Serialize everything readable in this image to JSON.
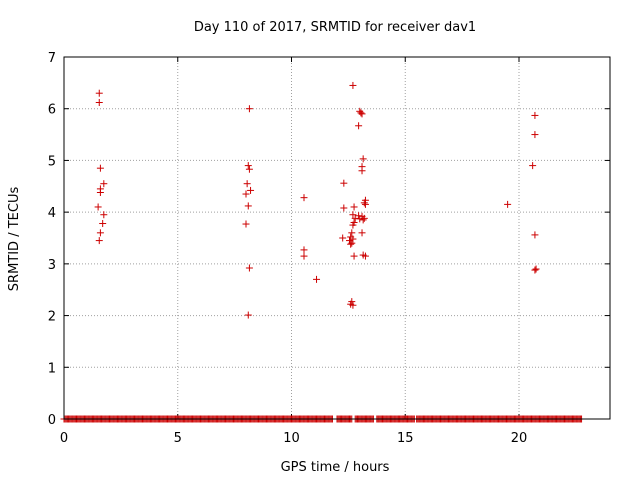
{
  "title": "Day 110 of 2017, SRMTID for receiver dav1",
  "xlabel": "GPS time / hours",
  "ylabel": "SRMTID / TECUs",
  "colors": {
    "points": "#cc0000",
    "axis": "#000000",
    "grid": "#a0a0a0",
    "background": "#ffffff"
  },
  "chart_data": {
    "type": "scatter",
    "title": "Day 110 of 2017, SRMTID for receiver dav1",
    "xlabel": "GPS time / hours",
    "ylabel": "SRMTID / TECUs",
    "xlim": [
      0,
      24
    ],
    "ylim": [
      0,
      7
    ],
    "xticks": [
      0,
      5,
      10,
      15,
      20
    ],
    "yticks": [
      0,
      1,
      2,
      3,
      4,
      5,
      6,
      7
    ],
    "grid": true,
    "marker": "+",
    "points": [
      [
        1.55,
        6.3
      ],
      [
        1.55,
        6.12
      ],
      [
        1.6,
        4.85
      ],
      [
        1.75,
        4.55
      ],
      [
        1.6,
        4.45
      ],
      [
        1.6,
        4.38
      ],
      [
        1.5,
        4.1
      ],
      [
        1.75,
        3.95
      ],
      [
        1.7,
        3.78
      ],
      [
        1.6,
        3.6
      ],
      [
        1.55,
        3.45
      ],
      [
        8.15,
        6.0
      ],
      [
        8.1,
        4.9
      ],
      [
        8.15,
        4.83
      ],
      [
        8.05,
        4.55
      ],
      [
        8.2,
        4.42
      ],
      [
        8.0,
        4.35
      ],
      [
        8.1,
        4.12
      ],
      [
        8.0,
        3.77
      ],
      [
        8.15,
        2.92
      ],
      [
        8.1,
        2.01
      ],
      [
        10.55,
        4.28
      ],
      [
        10.55,
        3.27
      ],
      [
        10.55,
        3.15
      ],
      [
        11.1,
        2.7
      ],
      [
        12.3,
        4.56
      ],
      [
        12.3,
        4.08
      ],
      [
        12.25,
        3.5
      ],
      [
        12.7,
        6.45
      ],
      [
        12.75,
        4.1
      ],
      [
        12.7,
        3.95
      ],
      [
        12.8,
        3.88
      ],
      [
        12.75,
        3.8
      ],
      [
        12.7,
        3.75
      ],
      [
        12.65,
        3.6
      ],
      [
        12.6,
        3.52
      ],
      [
        12.7,
        3.48
      ],
      [
        12.55,
        3.45
      ],
      [
        12.65,
        3.4
      ],
      [
        12.6,
        3.38
      ],
      [
        12.75,
        3.15
      ],
      [
        12.65,
        2.27
      ],
      [
        12.6,
        2.22
      ],
      [
        12.7,
        2.2
      ],
      [
        13.0,
        5.95
      ],
      [
        13.05,
        5.92
      ],
      [
        13.1,
        5.9
      ],
      [
        12.95,
        5.67
      ],
      [
        13.15,
        5.03
      ],
      [
        13.1,
        4.88
      ],
      [
        13.1,
        4.8
      ],
      [
        13.25,
        4.23
      ],
      [
        13.2,
        4.18
      ],
      [
        13.25,
        4.15
      ],
      [
        12.95,
        3.93
      ],
      [
        13.1,
        3.92
      ],
      [
        13.2,
        3.88
      ],
      [
        13.0,
        3.87
      ],
      [
        13.15,
        3.85
      ],
      [
        13.1,
        3.6
      ],
      [
        13.15,
        3.17
      ],
      [
        13.25,
        3.15
      ],
      [
        19.5,
        4.15
      ],
      [
        20.7,
        5.87
      ],
      [
        20.7,
        5.5
      ],
      [
        20.6,
        4.9
      ],
      [
        20.7,
        3.56
      ],
      [
        20.75,
        2.9
      ],
      [
        20.7,
        2.88
      ]
    ],
    "zero_runs": [
      [
        0,
        11.8
      ],
      [
        12.0,
        12.65
      ],
      [
        12.8,
        13.6
      ],
      [
        13.75,
        15.4
      ],
      [
        15.5,
        22.75
      ]
    ]
  }
}
